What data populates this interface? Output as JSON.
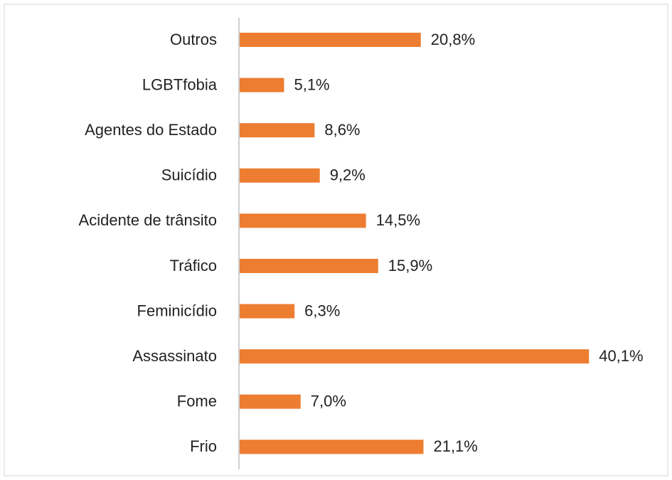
{
  "chart_data": {
    "type": "bar",
    "orientation": "horizontal",
    "categories": [
      "Outros",
      "LGBTfobia",
      "Agentes do Estado",
      "Suicídio",
      "Acidente de trânsito",
      "Tráfico",
      "Feminicídio",
      "Assassinato",
      "Fome",
      "Frio"
    ],
    "values": [
      20.8,
      5.1,
      8.6,
      9.2,
      14.5,
      15.9,
      6.3,
      40.1,
      7.0,
      21.1
    ],
    "value_labels": [
      "20,8%",
      "5,1%",
      "8,6%",
      "9,2%",
      "14,5%",
      "15,9%",
      "6,3%",
      "40,1%",
      "7,0%",
      "21,1%"
    ],
    "color": "#ED7D31"
  }
}
